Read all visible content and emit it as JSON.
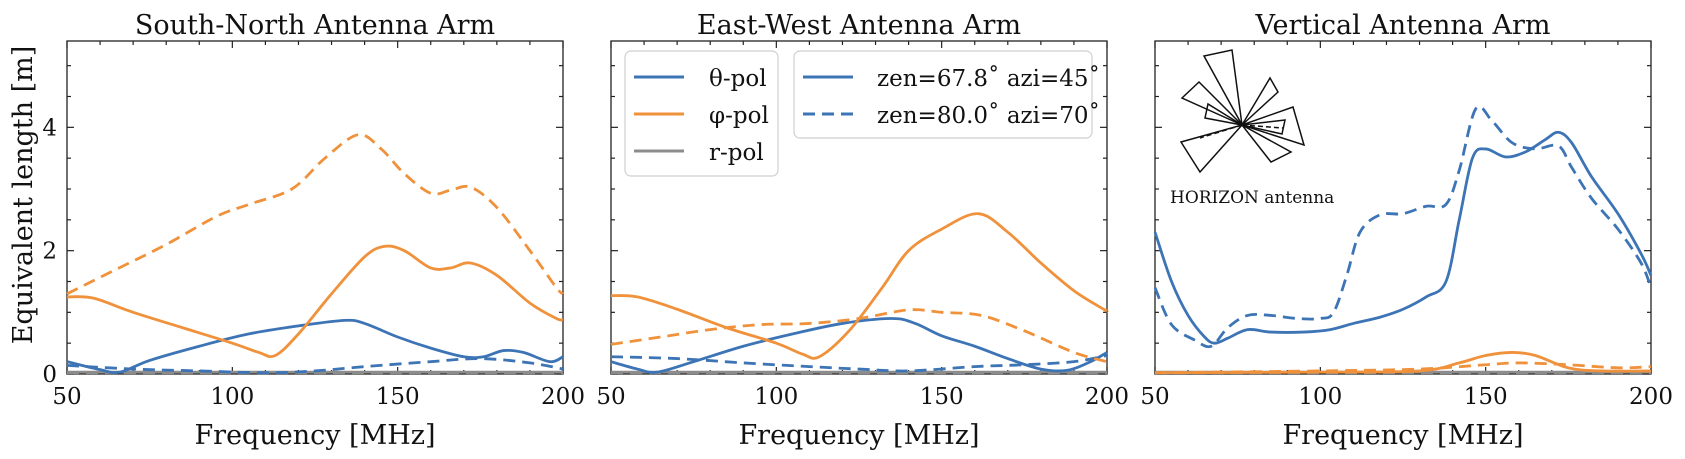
{
  "figure": {
    "ylabel": "Equivalent length [m]",
    "colors": {
      "theta": "#3d74b5",
      "phi": "#f0913b",
      "r": "#8c8c8c"
    }
  },
  "legend": {
    "pol": [
      {
        "label": "θ-pol",
        "color": "#3d74b5"
      },
      {
        "label": "φ-pol",
        "color": "#f0913b"
      },
      {
        "label": "r-pol",
        "color": "#8c8c8c"
      }
    ],
    "dir": [
      {
        "label": "zen=67.8˚ azi=45˚",
        "style": "solid"
      },
      {
        "label": "zen=80.0˚ azi=70˚",
        "style": "dashed"
      }
    ]
  },
  "inset": {
    "label": "HORIZON antenna"
  },
  "chart_data": [
    {
      "type": "line",
      "title": "South-North Antenna Arm",
      "xlabel": "Frequency [MHz]",
      "ylabel": "Equivalent length [m]",
      "xlim": [
        50,
        200
      ],
      "ylim": [
        0,
        5.4
      ],
      "xticks": [
        50,
        100,
        150,
        200
      ],
      "yticks": [
        0,
        2,
        4
      ],
      "series": [
        {
          "name": "θ-pol zen=67.8 azi=45",
          "pol": "theta",
          "style": "solid",
          "points": [
            [
              50,
              0.2
            ],
            [
              60,
              0.07
            ],
            [
              66,
              0.03
            ],
            [
              75,
              0.22
            ],
            [
              90,
              0.45
            ],
            [
              105,
              0.65
            ],
            [
              120,
              0.78
            ],
            [
              134,
              0.87
            ],
            [
              140,
              0.82
            ],
            [
              150,
              0.6
            ],
            [
              160,
              0.42
            ],
            [
              170,
              0.28
            ],
            [
              176,
              0.28
            ],
            [
              182,
              0.38
            ],
            [
              188,
              0.35
            ],
            [
              196,
              0.2
            ],
            [
              200,
              0.28
            ]
          ]
        },
        {
          "name": "φ-pol zen=67.8 azi=45",
          "pol": "phi",
          "style": "solid",
          "points": [
            [
              50,
              1.25
            ],
            [
              58,
              1.23
            ],
            [
              70,
              1.0
            ],
            [
              85,
              0.75
            ],
            [
              100,
              0.5
            ],
            [
              108,
              0.35
            ],
            [
              113,
              0.3
            ],
            [
              120,
              0.65
            ],
            [
              130,
              1.3
            ],
            [
              140,
              1.9
            ],
            [
              146,
              2.07
            ],
            [
              152,
              2.0
            ],
            [
              160,
              1.72
            ],
            [
              166,
              1.72
            ],
            [
              172,
              1.8
            ],
            [
              180,
              1.6
            ],
            [
              190,
              1.15
            ],
            [
              198,
              0.9
            ],
            [
              200,
              0.88
            ]
          ]
        },
        {
          "name": "r-pol zen=67.8 azi=45",
          "pol": "r",
          "style": "solid",
          "points": [
            [
              50,
              0.03
            ],
            [
              200,
              0.03
            ]
          ]
        },
        {
          "name": "θ-pol zen=80.0 azi=70",
          "pol": "theta",
          "style": "dashed",
          "points": [
            [
              50,
              0.14
            ],
            [
              70,
              0.08
            ],
            [
              90,
              0.05
            ],
            [
              110,
              0.02
            ],
            [
              125,
              0.05
            ],
            [
              140,
              0.12
            ],
            [
              160,
              0.2
            ],
            [
              175,
              0.25
            ],
            [
              190,
              0.18
            ],
            [
              200,
              0.08
            ]
          ]
        },
        {
          "name": "φ-pol zen=80.0 azi=70",
          "pol": "phi",
          "style": "dashed",
          "points": [
            [
              50,
              1.3
            ],
            [
              65,
              1.7
            ],
            [
              80,
              2.1
            ],
            [
              95,
              2.55
            ],
            [
              105,
              2.75
            ],
            [
              118,
              3.0
            ],
            [
              128,
              3.5
            ],
            [
              138,
              3.88
            ],
            [
              145,
              3.65
            ],
            [
              152,
              3.25
            ],
            [
              160,
              2.93
            ],
            [
              166,
              2.98
            ],
            [
              172,
              3.03
            ],
            [
              180,
              2.7
            ],
            [
              190,
              2.0
            ],
            [
              198,
              1.4
            ],
            [
              200,
              1.3
            ]
          ]
        },
        {
          "name": "r-pol zen=80.0 azi=70",
          "pol": "r",
          "style": "dashed",
          "points": [
            [
              50,
              0.02
            ],
            [
              200,
              0.02
            ]
          ]
        }
      ]
    },
    {
      "type": "line",
      "title": "East-West Antenna Arm",
      "xlabel": "Frequency [MHz]",
      "ylabel": "",
      "xlim": [
        50,
        200
      ],
      "ylim": [
        0,
        5.4
      ],
      "xticks": [
        50,
        100,
        150,
        200
      ],
      "yticks": [
        0,
        2,
        4
      ],
      "series": [
        {
          "name": "θ-pol zen=67.8 azi=45",
          "pol": "theta",
          "style": "solid",
          "points": [
            [
              50,
              0.2
            ],
            [
              58,
              0.08
            ],
            [
              64,
              0.03
            ],
            [
              75,
              0.2
            ],
            [
              90,
              0.45
            ],
            [
              105,
              0.65
            ],
            [
              120,
              0.82
            ],
            [
              135,
              0.9
            ],
            [
              142,
              0.82
            ],
            [
              150,
              0.62
            ],
            [
              160,
              0.45
            ],
            [
              170,
              0.25
            ],
            [
              180,
              0.08
            ],
            [
              188,
              0.06
            ],
            [
              195,
              0.2
            ],
            [
              200,
              0.35
            ]
          ]
        },
        {
          "name": "φ-pol zen=67.8 azi=45",
          "pol": "phi",
          "style": "solid",
          "points": [
            [
              50,
              1.27
            ],
            [
              58,
              1.25
            ],
            [
              70,
              1.05
            ],
            [
              85,
              0.75
            ],
            [
              100,
              0.5
            ],
            [
              108,
              0.32
            ],
            [
              113,
              0.28
            ],
            [
              122,
              0.7
            ],
            [
              132,
              1.4
            ],
            [
              140,
              2.0
            ],
            [
              150,
              2.35
            ],
            [
              161,
              2.6
            ],
            [
              170,
              2.3
            ],
            [
              180,
              1.8
            ],
            [
              190,
              1.35
            ],
            [
              199,
              1.05
            ],
            [
              200,
              1.03
            ]
          ]
        },
        {
          "name": "r-pol zen=67.8 azi=45",
          "pol": "r",
          "style": "solid",
          "points": [
            [
              50,
              0.03
            ],
            [
              200,
              0.03
            ]
          ]
        },
        {
          "name": "θ-pol zen=80.0 azi=70",
          "pol": "theta",
          "style": "dashed",
          "points": [
            [
              50,
              0.28
            ],
            [
              70,
              0.25
            ],
            [
              90,
              0.18
            ],
            [
              110,
              0.12
            ],
            [
              125,
              0.08
            ],
            [
              140,
              0.05
            ],
            [
              160,
              0.12
            ],
            [
              175,
              0.15
            ],
            [
              190,
              0.2
            ],
            [
              200,
              0.3
            ]
          ]
        },
        {
          "name": "φ-pol zen=80.0 azi=70",
          "pol": "phi",
          "style": "dashed",
          "points": [
            [
              50,
              0.48
            ],
            [
              65,
              0.6
            ],
            [
              80,
              0.72
            ],
            [
              95,
              0.8
            ],
            [
              110,
              0.82
            ],
            [
              125,
              0.9
            ],
            [
              140,
              1.04
            ],
            [
              150,
              1.0
            ],
            [
              162,
              0.95
            ],
            [
              175,
              0.7
            ],
            [
              190,
              0.35
            ],
            [
              200,
              0.2
            ]
          ]
        },
        {
          "name": "r-pol zen=80.0 azi=70",
          "pol": "r",
          "style": "dashed",
          "points": [
            [
              50,
              0.02
            ],
            [
              200,
              0.02
            ]
          ]
        }
      ]
    },
    {
      "type": "line",
      "title": "Vertical Antenna Arm",
      "xlabel": "Frequency [MHz]",
      "ylabel": "",
      "xlim": [
        50,
        200
      ],
      "ylim": [
        0,
        5.4
      ],
      "xticks": [
        50,
        100,
        150,
        200
      ],
      "yticks": [
        0,
        2,
        4
      ],
      "series": [
        {
          "name": "θ-pol zen=67.8 azi=45",
          "pol": "theta",
          "style": "solid",
          "points": [
            [
              50,
              2.3
            ],
            [
              55,
              1.5
            ],
            [
              60,
              0.95
            ],
            [
              65,
              0.6
            ],
            [
              68,
              0.5
            ],
            [
              72,
              0.58
            ],
            [
              78,
              0.72
            ],
            [
              85,
              0.68
            ],
            [
              95,
              0.68
            ],
            [
              103,
              0.72
            ],
            [
              110,
              0.82
            ],
            [
              118,
              0.92
            ],
            [
              125,
              1.05
            ],
            [
              132,
              1.25
            ],
            [
              138,
              1.5
            ],
            [
              142,
              2.5
            ],
            [
              146,
              3.5
            ],
            [
              150,
              3.65
            ],
            [
              156,
              3.52
            ],
            [
              162,
              3.6
            ],
            [
              168,
              3.8
            ],
            [
              172,
              3.92
            ],
            [
              176,
              3.75
            ],
            [
              182,
              3.2
            ],
            [
              190,
              2.6
            ],
            [
              197,
              1.95
            ],
            [
              200,
              1.6
            ]
          ]
        },
        {
          "name": "φ-pol zen=67.8 azi=45",
          "pol": "phi",
          "style": "solid",
          "points": [
            [
              50,
              0.02
            ],
            [
              100,
              0.03
            ],
            [
              130,
              0.05
            ],
            [
              142,
              0.18
            ],
            [
              150,
              0.3
            ],
            [
              158,
              0.35
            ],
            [
              165,
              0.3
            ],
            [
              175,
              0.1
            ],
            [
              185,
              0.05
            ],
            [
              200,
              0.05
            ]
          ]
        },
        {
          "name": "r-pol zen=67.8 azi=45",
          "pol": "r",
          "style": "solid",
          "points": [
            [
              50,
              0.03
            ],
            [
              200,
              0.03
            ]
          ]
        },
        {
          "name": "θ-pol zen=80.0 azi=70",
          "pol": "theta",
          "style": "dashed",
          "points": [
            [
              50,
              1.4
            ],
            [
              55,
              0.8
            ],
            [
              62,
              0.55
            ],
            [
              67,
              0.45
            ],
            [
              72,
              0.75
            ],
            [
              78,
              0.95
            ],
            [
              85,
              0.95
            ],
            [
              93,
              0.9
            ],
            [
              100,
              0.9
            ],
            [
              104,
              1.0
            ],
            [
              108,
              1.6
            ],
            [
              112,
              2.3
            ],
            [
              118,
              2.58
            ],
            [
              125,
              2.6
            ],
            [
              132,
              2.72
            ],
            [
              138,
              2.75
            ],
            [
              142,
              3.3
            ],
            [
              147,
              4.3
            ],
            [
              152,
              4.1
            ],
            [
              158,
              3.75
            ],
            [
              165,
              3.65
            ],
            [
              172,
              3.7
            ],
            [
              176,
              3.35
            ],
            [
              182,
              2.85
            ],
            [
              190,
              2.35
            ],
            [
              197,
              1.8
            ],
            [
              200,
              1.4
            ]
          ]
        },
        {
          "name": "φ-pol zen=80.0 azi=70",
          "pol": "phi",
          "style": "dashed",
          "points": [
            [
              50,
              0.02
            ],
            [
              100,
              0.05
            ],
            [
              130,
              0.08
            ],
            [
              150,
              0.15
            ],
            [
              160,
              0.18
            ],
            [
              175,
              0.15
            ],
            [
              190,
              0.1
            ],
            [
              200,
              0.12
            ]
          ]
        },
        {
          "name": "r-pol zen=80.0 azi=70",
          "pol": "r",
          "style": "dashed",
          "points": [
            [
              50,
              0.02
            ],
            [
              200,
              0.02
            ]
          ]
        }
      ]
    }
  ]
}
